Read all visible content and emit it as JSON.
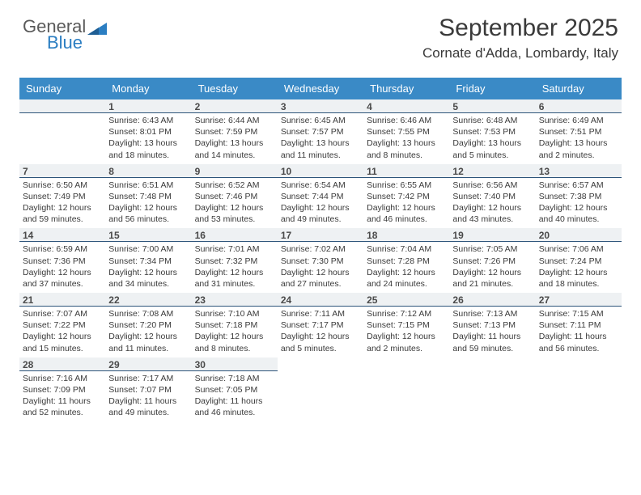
{
  "branding": {
    "logo_word1": "General",
    "logo_word2": "Blue",
    "logo_word1_color": "#5a5a5a",
    "logo_word2_color": "#2b7ec2",
    "triangle_color": "#2b7ec2"
  },
  "header": {
    "month_title": "September 2025",
    "location": "Cornate d'Adda, Lombardy, Italy"
  },
  "colors": {
    "day_header_bg": "#3a8ac6",
    "day_header_text": "#ffffff",
    "daynum_bg": "#eef1f3",
    "daynum_border": "#2d547a",
    "body_text": "#3a3a3a",
    "page_bg": "#ffffff"
  },
  "typography": {
    "month_title_fontsize": 30,
    "location_fontsize": 17,
    "day_header_fontsize": 13,
    "daynum_fontsize": 12,
    "cell_fontsize": 10.5
  },
  "calendar": {
    "type": "table",
    "day_headers": [
      "Sunday",
      "Monday",
      "Tuesday",
      "Wednesday",
      "Thursday",
      "Friday",
      "Saturday"
    ],
    "leading_blanks": 1,
    "days": [
      {
        "n": 1,
        "sunrise": "6:43 AM",
        "sunset": "8:01 PM",
        "daylight": "13 hours and 18 minutes."
      },
      {
        "n": 2,
        "sunrise": "6:44 AM",
        "sunset": "7:59 PM",
        "daylight": "13 hours and 14 minutes."
      },
      {
        "n": 3,
        "sunrise": "6:45 AM",
        "sunset": "7:57 PM",
        "daylight": "13 hours and 11 minutes."
      },
      {
        "n": 4,
        "sunrise": "6:46 AM",
        "sunset": "7:55 PM",
        "daylight": "13 hours and 8 minutes."
      },
      {
        "n": 5,
        "sunrise": "6:48 AM",
        "sunset": "7:53 PM",
        "daylight": "13 hours and 5 minutes."
      },
      {
        "n": 6,
        "sunrise": "6:49 AM",
        "sunset": "7:51 PM",
        "daylight": "13 hours and 2 minutes."
      },
      {
        "n": 7,
        "sunrise": "6:50 AM",
        "sunset": "7:49 PM",
        "daylight": "12 hours and 59 minutes."
      },
      {
        "n": 8,
        "sunrise": "6:51 AM",
        "sunset": "7:48 PM",
        "daylight": "12 hours and 56 minutes."
      },
      {
        "n": 9,
        "sunrise": "6:52 AM",
        "sunset": "7:46 PM",
        "daylight": "12 hours and 53 minutes."
      },
      {
        "n": 10,
        "sunrise": "6:54 AM",
        "sunset": "7:44 PM",
        "daylight": "12 hours and 49 minutes."
      },
      {
        "n": 11,
        "sunrise": "6:55 AM",
        "sunset": "7:42 PM",
        "daylight": "12 hours and 46 minutes."
      },
      {
        "n": 12,
        "sunrise": "6:56 AM",
        "sunset": "7:40 PM",
        "daylight": "12 hours and 43 minutes."
      },
      {
        "n": 13,
        "sunrise": "6:57 AM",
        "sunset": "7:38 PM",
        "daylight": "12 hours and 40 minutes."
      },
      {
        "n": 14,
        "sunrise": "6:59 AM",
        "sunset": "7:36 PM",
        "daylight": "12 hours and 37 minutes."
      },
      {
        "n": 15,
        "sunrise": "7:00 AM",
        "sunset": "7:34 PM",
        "daylight": "12 hours and 34 minutes."
      },
      {
        "n": 16,
        "sunrise": "7:01 AM",
        "sunset": "7:32 PM",
        "daylight": "12 hours and 31 minutes."
      },
      {
        "n": 17,
        "sunrise": "7:02 AM",
        "sunset": "7:30 PM",
        "daylight": "12 hours and 27 minutes."
      },
      {
        "n": 18,
        "sunrise": "7:04 AM",
        "sunset": "7:28 PM",
        "daylight": "12 hours and 24 minutes."
      },
      {
        "n": 19,
        "sunrise": "7:05 AM",
        "sunset": "7:26 PM",
        "daylight": "12 hours and 21 minutes."
      },
      {
        "n": 20,
        "sunrise": "7:06 AM",
        "sunset": "7:24 PM",
        "daylight": "12 hours and 18 minutes."
      },
      {
        "n": 21,
        "sunrise": "7:07 AM",
        "sunset": "7:22 PM",
        "daylight": "12 hours and 15 minutes."
      },
      {
        "n": 22,
        "sunrise": "7:08 AM",
        "sunset": "7:20 PM",
        "daylight": "12 hours and 11 minutes."
      },
      {
        "n": 23,
        "sunrise": "7:10 AM",
        "sunset": "7:18 PM",
        "daylight": "12 hours and 8 minutes."
      },
      {
        "n": 24,
        "sunrise": "7:11 AM",
        "sunset": "7:17 PM",
        "daylight": "12 hours and 5 minutes."
      },
      {
        "n": 25,
        "sunrise": "7:12 AM",
        "sunset": "7:15 PM",
        "daylight": "12 hours and 2 minutes."
      },
      {
        "n": 26,
        "sunrise": "7:13 AM",
        "sunset": "7:13 PM",
        "daylight": "11 hours and 59 minutes."
      },
      {
        "n": 27,
        "sunrise": "7:15 AM",
        "sunset": "7:11 PM",
        "daylight": "11 hours and 56 minutes."
      },
      {
        "n": 28,
        "sunrise": "7:16 AM",
        "sunset": "7:09 PM",
        "daylight": "11 hours and 52 minutes."
      },
      {
        "n": 29,
        "sunrise": "7:17 AM",
        "sunset": "7:07 PM",
        "daylight": "11 hours and 49 minutes."
      },
      {
        "n": 30,
        "sunrise": "7:18 AM",
        "sunset": "7:05 PM",
        "daylight": "11 hours and 46 minutes."
      }
    ],
    "labels": {
      "sunrise_prefix": "Sunrise: ",
      "sunset_prefix": "Sunset: ",
      "daylight_prefix": "Daylight: "
    }
  }
}
